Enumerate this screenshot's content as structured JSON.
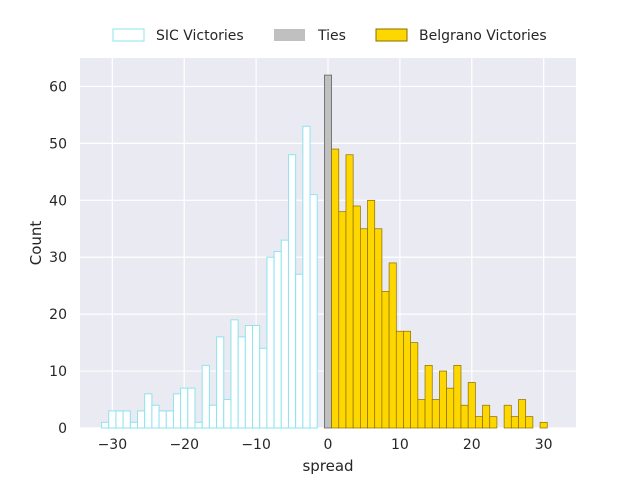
{
  "chart_data": {
    "type": "bar",
    "subtype": "histogram",
    "xlabel": "spread",
    "ylabel": "Count",
    "xlim": [
      -34.5,
      34.5
    ],
    "ylim": [
      0,
      65
    ],
    "xticks": [
      -30,
      -20,
      -10,
      0,
      10,
      20,
      30
    ],
    "yticks": [
      0,
      10,
      20,
      30,
      40,
      50,
      60
    ],
    "grid": true,
    "legend_position": "top-center",
    "bin_width": 1,
    "series": [
      {
        "name": "SIC Victories",
        "style": "outline",
        "color": "#8ee3ef",
        "x": [
          -31,
          -30,
          -29,
          -28,
          -27,
          -26,
          -25,
          -24,
          -23,
          -22,
          -21,
          -20,
          -19,
          -18,
          -17,
          -16,
          -15,
          -14,
          -13,
          -12,
          -11,
          -10,
          -9,
          -8,
          -7,
          -6,
          -5,
          -4,
          -3,
          -2,
          -1
        ],
        "values": [
          1,
          3,
          3,
          3,
          1,
          3,
          6,
          4,
          3,
          3,
          6,
          7,
          7,
          1,
          11,
          4,
          16,
          5,
          19,
          16,
          18,
          18,
          14,
          30,
          31,
          33,
          48,
          27,
          53,
          41,
          0
        ]
      },
      {
        "name": "Ties",
        "style": "filled",
        "color": "#c0c0c0",
        "edge": "#555555",
        "x": [
          0
        ],
        "values": [
          62
        ]
      },
      {
        "name": "Belgrano Victories",
        "style": "filled",
        "color": "#ffd700",
        "edge": "#8a6d00",
        "x": [
          1,
          2,
          3,
          4,
          5,
          6,
          7,
          8,
          9,
          10,
          11,
          12,
          13,
          14,
          15,
          16,
          17,
          18,
          19,
          20,
          21,
          22,
          23,
          24,
          25,
          26,
          27,
          28,
          29,
          30,
          31
        ],
        "values": [
          49,
          38,
          48,
          39,
          35,
          40,
          35,
          24,
          29,
          17,
          17,
          15,
          5,
          11,
          5,
          10,
          7,
          11,
          4,
          8,
          2,
          4,
          2,
          0,
          4,
          2,
          5,
          2,
          0,
          1,
          0
        ]
      }
    ]
  }
}
